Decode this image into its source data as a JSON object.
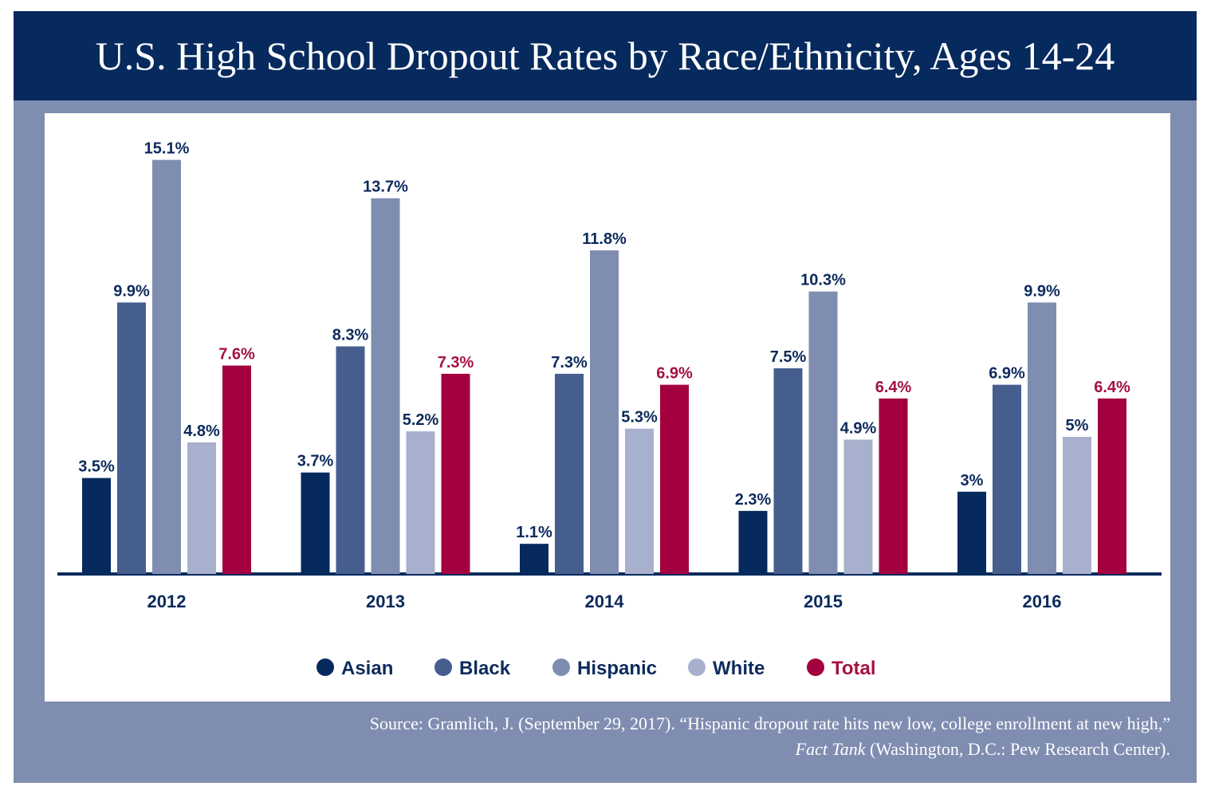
{
  "colors": {
    "title_bg": "#062a5e",
    "frame": "#7f8db0",
    "axis": "#062a5e",
    "label_dark": "#0c2a5c",
    "label_total": "#a4123f"
  },
  "chart_data": {
    "type": "bar",
    "title": "U.S. High School Dropout Rates by Race/Ethnicity, Ages 14-24",
    "categories": [
      "2012",
      "2013",
      "2014",
      "2015",
      "2016"
    ],
    "series": [
      {
        "name": "Asian",
        "color": "#062a5e",
        "values": [
          3.5,
          3.7,
          1.1,
          2.3,
          3.0
        ],
        "labels": [
          "3.5%",
          "3.7%",
          "1.1%",
          "2.3%",
          "3%"
        ]
      },
      {
        "name": "Black",
        "color": "#455e8e",
        "values": [
          9.9,
          8.3,
          7.3,
          7.5,
          6.9
        ],
        "labels": [
          "9.9%",
          "8.3%",
          "7.3%",
          "7.5%",
          "6.9%"
        ]
      },
      {
        "name": "Hispanic",
        "color": "#7f8db0",
        "values": [
          15.1,
          13.7,
          11.8,
          10.3,
          9.9
        ],
        "labels": [
          "15.1%",
          "13.7%",
          "11.8%",
          "10.3%",
          "9.9%"
        ]
      },
      {
        "name": "White",
        "color": "#a7b0cc",
        "values": [
          4.8,
          5.2,
          5.3,
          4.9,
          5.0
        ],
        "labels": [
          "4.8%",
          "5.2%",
          "5.3%",
          "4.9%",
          "5%"
        ]
      },
      {
        "name": "Total",
        "color": "#a4003f",
        "values": [
          7.6,
          7.3,
          6.9,
          6.4,
          6.4
        ],
        "labels": [
          "7.6%",
          "7.3%",
          "6.9%",
          "6.4%",
          "6.4%"
        ]
      }
    ],
    "ylim": [
      0,
      16
    ],
    "grid": false,
    "legend_position": "bottom"
  },
  "source": {
    "line1": "Source: Gramlich, J. (September 29, 2017). “Hispanic dropout rate hits new low, college enrollment at new high,”",
    "line2_italic": "Fact Tank",
    "line2_rest": " (Washington, D.C.: Pew Research Center)."
  }
}
